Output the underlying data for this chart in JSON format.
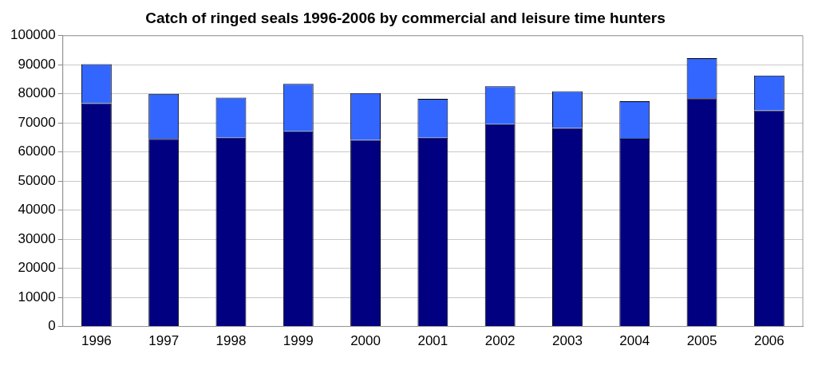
{
  "chart_data": {
    "type": "bar",
    "title": "Catch of ringed seals 1996-2006 by commercial and leisure time hunters",
    "categories": [
      "1996",
      "1997",
      "1998",
      "1999",
      "2000",
      "2001",
      "2002",
      "2003",
      "2004",
      "2005",
      "2006"
    ],
    "stacked": true,
    "series": [
      {
        "color": "#000080",
        "values": [
          76800,
          64500,
          64900,
          67100,
          64200,
          64900,
          69600,
          68300,
          64600,
          78500,
          74300
        ]
      },
      {
        "color": "#3366ff",
        "values": [
          13400,
          15500,
          13800,
          16300,
          16100,
          13400,
          13000,
          12600,
          12900,
          13800,
          12000
        ]
      }
    ],
    "ylim": [
      0,
      100000
    ],
    "yticks": [
      0,
      10000,
      20000,
      30000,
      40000,
      50000,
      60000,
      70000,
      80000,
      90000,
      100000
    ],
    "grid": "y",
    "legend": false
  }
}
